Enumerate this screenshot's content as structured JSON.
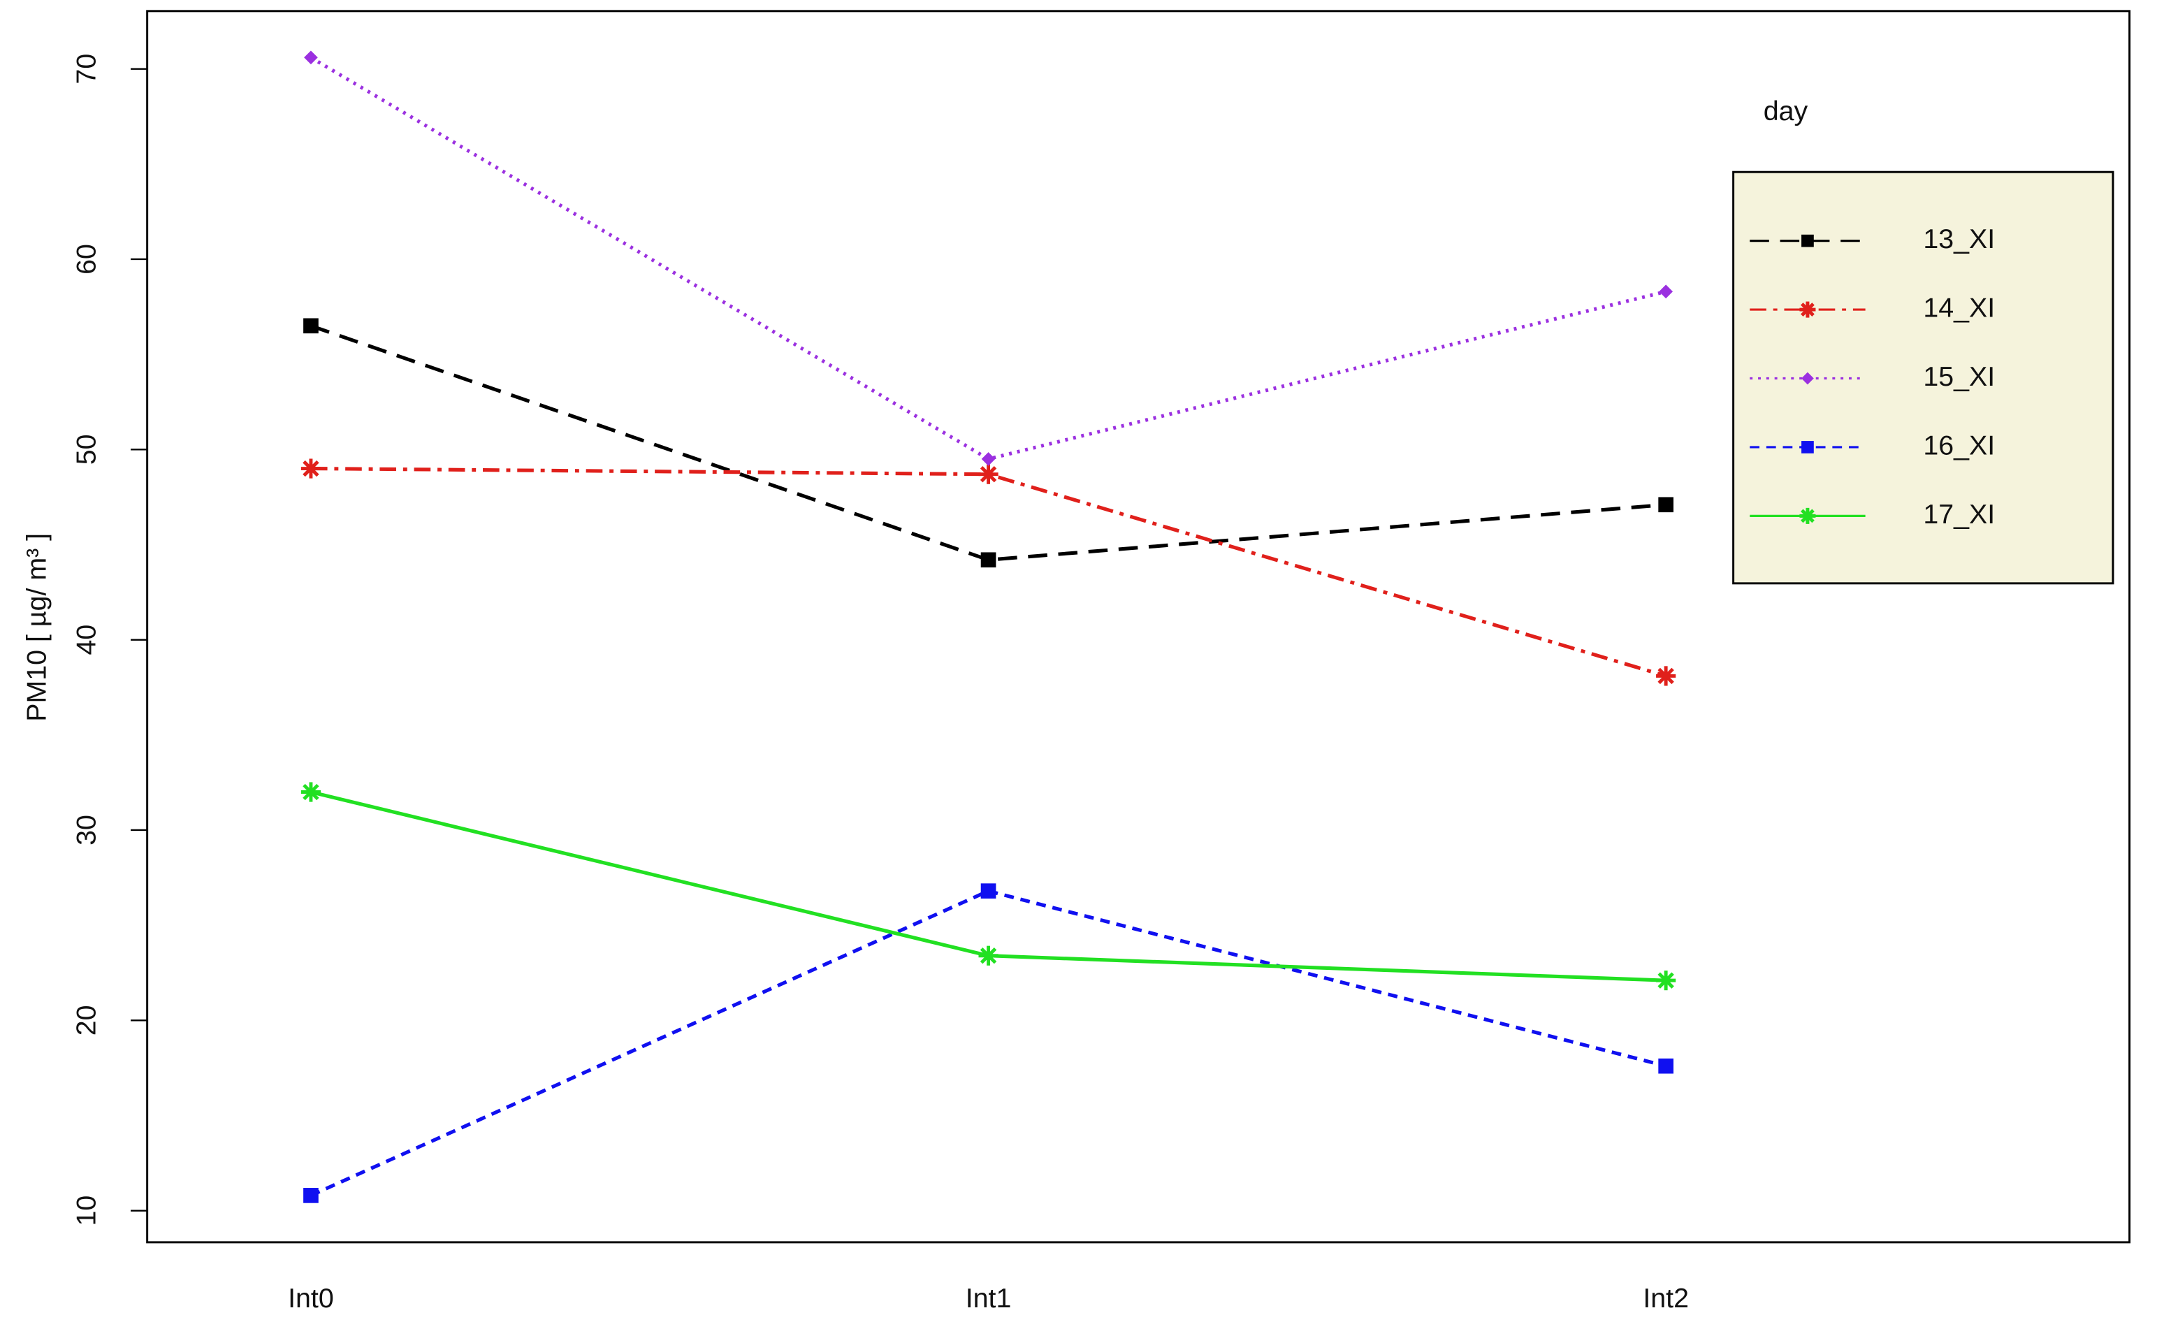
{
  "chart_data": {
    "type": "line",
    "y_label": "PM10 [ µg/ m³ ]",
    "legend_title": "day",
    "legend_position": "upper right",
    "categories": [
      "Int0",
      "Int1",
      "Int2"
    ],
    "series": [
      {
        "name": "13_XI",
        "color": "#000000",
        "values": [
          56.5,
          44.2,
          47.1
        ]
      },
      {
        "name": "14_XI",
        "color": "#e0201b",
        "values": [
          49.0,
          48.7,
          38.1
        ]
      },
      {
        "name": "15_XI",
        "color": "#9b30e0",
        "values": [
          70.6,
          49.5,
          58.3
        ]
      },
      {
        "name": "16_XI",
        "color": "#1010f0",
        "values": [
          10.8,
          26.8,
          17.6
        ]
      },
      {
        "name": "17_XI",
        "color": "#22e022",
        "values": [
          32.0,
          23.4,
          22.1
        ]
      }
    ],
    "ylim": [
      8.34,
      73.04
    ],
    "yticks": [
      10,
      20,
      30,
      40,
      50,
      60,
      70
    ],
    "grid": false
  }
}
